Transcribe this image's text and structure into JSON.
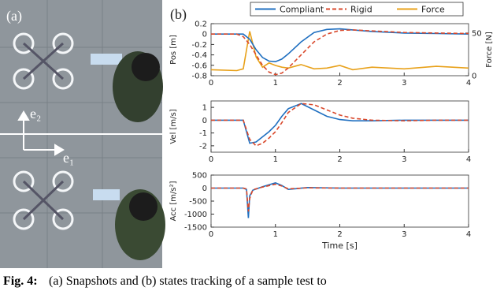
{
  "panel_a": {
    "label": "(a)",
    "axis_labels": [
      "e₂",
      "e₁"
    ]
  },
  "panel_b_label": "(b)",
  "chart_data": [
    {
      "type": "line",
      "ylabel": "Pos [m]",
      "y2label": "Force [N]",
      "legend": "top",
      "x": [
        0,
        0.4,
        0.5,
        0.6,
        0.7,
        0.8,
        0.9,
        1.0,
        1.1,
        1.2,
        1.4,
        1.6,
        1.8,
        2.0,
        2.2,
        2.5,
        3,
        3.5,
        4
      ],
      "series": [
        {
          "name": "Compliant",
          "color": "#1f6fc0",
          "line_style": "solid",
          "values": [
            0,
            0,
            0,
            -0.1,
            -0.3,
            -0.45,
            -0.52,
            -0.53,
            -0.48,
            -0.38,
            -0.15,
            0.03,
            0.09,
            0.1,
            0.08,
            0.05,
            0.02,
            0.01,
            0
          ]
        },
        {
          "name": "Rigid",
          "color": "#d9482b",
          "line_style": "dashed",
          "values": [
            0,
            0,
            -0.05,
            -0.2,
            -0.4,
            -0.6,
            -0.73,
            -0.78,
            -0.75,
            -0.65,
            -0.4,
            -0.15,
            0,
            0.07,
            0.08,
            0.06,
            0.03,
            0.02,
            0.01
          ]
        },
        {
          "name": "Force",
          "color": "#e8a11a",
          "line_style": "solid",
          "axis": "y2",
          "values": [
            7,
            6,
            8,
            52,
            22,
            10,
            15,
            12,
            10,
            9,
            13,
            8,
            9,
            12,
            7,
            10,
            8,
            11,
            9
          ]
        }
      ],
      "xlim": [
        0,
        4
      ],
      "xticks": [
        0,
        1,
        2,
        3,
        4
      ],
      "ylim": [
        -0.8,
        0.2
      ],
      "yticks": [
        0.2,
        0,
        -0.2,
        -0.4,
        -0.6,
        -0.8
      ],
      "y2lim": [
        0,
        61
      ],
      "y2ticks": [
        0,
        50
      ]
    },
    {
      "type": "line",
      "ylabel": "Vel [m/s]",
      "x": [
        0,
        0.4,
        0.5,
        0.6,
        0.7,
        0.8,
        0.9,
        1.0,
        1.1,
        1.2,
        1.4,
        1.6,
        1.8,
        2.0,
        2.2,
        2.5,
        3,
        3.5,
        4
      ],
      "series": [
        {
          "color": "#1f6fc0",
          "line_style": "solid",
          "values": [
            0,
            0,
            0,
            -1.8,
            -1.7,
            -1.3,
            -0.9,
            -0.4,
            0.3,
            0.9,
            1.3,
            0.8,
            0.3,
            0.05,
            -0.05,
            -0.05,
            0,
            0,
            0
          ]
        },
        {
          "color": "#d9482b",
          "line_style": "dashed",
          "values": [
            0,
            0,
            0,
            -1.5,
            -2.0,
            -1.8,
            -1.4,
            -0.9,
            -0.2,
            0.6,
            1.3,
            1.2,
            0.8,
            0.4,
            0.15,
            0,
            -0.05,
            0,
            0
          ]
        }
      ],
      "xlim": [
        0,
        4
      ],
      "xticks": [
        0,
        1,
        2,
        3,
        4
      ],
      "ylim": [
        -2.5,
        1.5
      ],
      "yticks": [
        1,
        0,
        -1,
        -2
      ]
    },
    {
      "type": "line",
      "ylabel": "Acc [m/s²]",
      "xlabel": "Time [s]",
      "x": [
        0,
        0.5,
        0.55,
        0.58,
        0.6,
        0.65,
        0.8,
        1.0,
        1.1,
        1.2,
        1.5,
        2,
        3,
        4
      ],
      "series": [
        {
          "color": "#1f6fc0",
          "line_style": "solid",
          "values": [
            0,
            0,
            -50,
            -1150,
            -300,
            -80,
            50,
            200,
            100,
            -50,
            20,
            0,
            0,
            0
          ]
        },
        {
          "color": "#d9482b",
          "line_style": "dashed",
          "values": [
            0,
            0,
            -30,
            -900,
            -400,
            -60,
            40,
            150,
            80,
            -30,
            10,
            0,
            0,
            0
          ]
        }
      ],
      "xlim": [
        0,
        4
      ],
      "xticks": [
        0,
        1,
        2,
        3,
        4
      ],
      "ylim": [
        -1500,
        500
      ],
      "yticks": [
        500,
        0,
        -500,
        -1000,
        -1500
      ]
    }
  ],
  "caption": {
    "label": "Fig. 4:",
    "text": "(a) Snapshots and (b) states tracking of a sample test to"
  }
}
